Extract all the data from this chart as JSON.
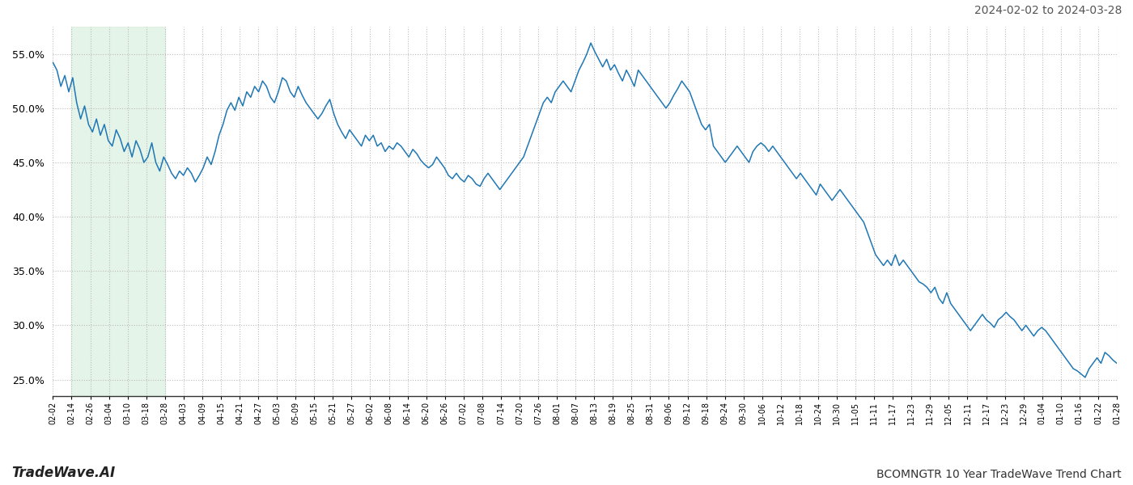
{
  "title_right": "2024-02-02 to 2024-03-28",
  "bottom_left": "TradeWave.AI",
  "bottom_right": "BCOMNGTR 10 Year TradeWave Trend Chart",
  "line_color": "#1f77b4",
  "shade_color": "#d4edda",
  "shade_alpha": 0.6,
  "ylim": [
    23.5,
    57.5
  ],
  "yticks": [
    25.0,
    30.0,
    35.0,
    40.0,
    45.0,
    50.0,
    55.0
  ],
  "x_shade_start_label": "02-14",
  "x_shade_end_label": "03-28",
  "values": [
    54.2,
    53.5,
    52.0,
    53.0,
    51.5,
    52.8,
    50.5,
    49.0,
    50.2,
    48.5,
    47.8,
    49.0,
    47.5,
    48.5,
    47.0,
    46.5,
    48.0,
    47.2,
    46.0,
    46.8,
    45.5,
    47.0,
    46.2,
    45.0,
    45.5,
    46.8,
    45.0,
    44.2,
    45.5,
    44.8,
    44.0,
    43.5,
    44.2,
    43.8,
    44.5,
    44.0,
    43.2,
    43.8,
    44.5,
    45.5,
    44.8,
    46.0,
    47.5,
    48.5,
    49.8,
    50.5,
    49.8,
    51.0,
    50.2,
    51.5,
    51.0,
    52.0,
    51.5,
    52.5,
    52.0,
    51.0,
    50.5,
    51.5,
    52.8,
    52.5,
    51.5,
    51.0,
    52.0,
    51.2,
    50.5,
    50.0,
    49.5,
    49.0,
    49.5,
    50.2,
    50.8,
    49.5,
    48.5,
    47.8,
    47.2,
    48.0,
    47.5,
    47.0,
    46.5,
    47.5,
    47.0,
    47.5,
    46.5,
    46.8,
    46.0,
    46.5,
    46.2,
    46.8,
    46.5,
    46.0,
    45.5,
    46.2,
    45.8,
    45.2,
    44.8,
    44.5,
    44.8,
    45.5,
    45.0,
    44.5,
    43.8,
    43.5,
    44.0,
    43.5,
    43.2,
    43.8,
    43.5,
    43.0,
    42.8,
    43.5,
    44.0,
    43.5,
    43.0,
    42.5,
    43.0,
    43.5,
    44.0,
    44.5,
    45.0,
    45.5,
    46.5,
    47.5,
    48.5,
    49.5,
    50.5,
    51.0,
    50.5,
    51.5,
    52.0,
    52.5,
    52.0,
    51.5,
    52.5,
    53.5,
    54.2,
    55.0,
    56.0,
    55.2,
    54.5,
    53.8,
    54.5,
    53.5,
    54.0,
    53.2,
    52.5,
    53.5,
    52.8,
    52.0,
    53.5,
    53.0,
    52.5,
    52.0,
    51.5,
    51.0,
    50.5,
    50.0,
    50.5,
    51.2,
    51.8,
    52.5,
    52.0,
    51.5,
    50.5,
    49.5,
    48.5,
    48.0,
    48.5,
    46.5,
    46.0,
    45.5,
    45.0,
    45.5,
    46.0,
    46.5,
    46.0,
    45.5,
    45.0,
    46.0,
    46.5,
    46.8,
    46.5,
    46.0,
    46.5,
    46.0,
    45.5,
    45.0,
    44.5,
    44.0,
    43.5,
    44.0,
    43.5,
    43.0,
    42.5,
    42.0,
    43.0,
    42.5,
    42.0,
    41.5,
    42.0,
    42.5,
    42.0,
    41.5,
    41.0,
    40.5,
    40.0,
    39.5,
    38.5,
    37.5,
    36.5,
    36.0,
    35.5,
    36.0,
    35.5,
    36.5,
    35.5,
    36.0,
    35.5,
    35.0,
    34.5,
    34.0,
    33.8,
    33.5,
    33.0,
    33.5,
    32.5,
    32.0,
    33.0,
    32.0,
    31.5,
    31.0,
    30.5,
    30.0,
    29.5,
    30.0,
    30.5,
    31.0,
    30.5,
    30.2,
    29.8,
    30.5,
    30.8,
    31.2,
    30.8,
    30.5,
    30.0,
    29.5,
    30.0,
    29.5,
    29.0,
    29.5,
    29.8,
    29.5,
    29.0,
    28.5,
    28.0,
    27.5,
    27.0,
    26.5,
    26.0,
    25.8,
    25.5,
    25.2,
    26.0,
    26.5,
    27.0,
    26.5,
    27.5,
    27.2,
    26.8,
    26.5
  ],
  "xtick_labels": [
    "02-02",
    "02-14",
    "02-26",
    "03-04",
    "03-10",
    "03-18",
    "03-28",
    "04-03",
    "04-09",
    "04-15",
    "04-21",
    "04-27",
    "05-03",
    "05-09",
    "05-15",
    "05-21",
    "05-27",
    "06-02",
    "06-08",
    "06-14",
    "06-20",
    "06-26",
    "07-02",
    "07-08",
    "07-14",
    "07-20",
    "07-26",
    "08-01",
    "08-07",
    "08-13",
    "08-19",
    "08-25",
    "08-31",
    "09-06",
    "09-12",
    "09-18",
    "09-24",
    "09-30",
    "10-06",
    "10-12",
    "10-18",
    "10-24",
    "10-30",
    "11-05",
    "11-11",
    "11-17",
    "11-23",
    "11-29",
    "12-05",
    "12-11",
    "12-17",
    "12-23",
    "12-29",
    "01-04",
    "01-10",
    "01-16",
    "01-22",
    "01-28"
  ]
}
